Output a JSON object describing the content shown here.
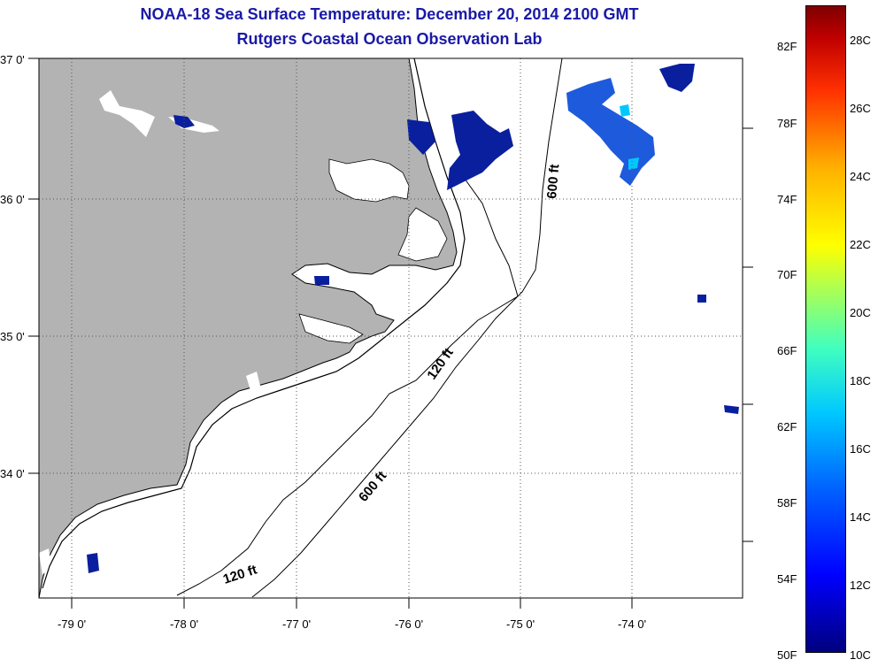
{
  "header": {
    "title": "NOAA-18 Sea Surface Temperature:  December 20, 2014 2100 GMT",
    "subtitle": "Rutgers Coastal Ocean Observation Lab"
  },
  "map": {
    "lat_labels": [
      "37 0'",
      "36 0'",
      "35 0'",
      "34 0'"
    ],
    "lon_labels": [
      "-79 0'",
      "-78 0'",
      "-77 0'",
      "-76 0'",
      "-75 0'",
      "-74 0'"
    ],
    "contour_labels": [
      "600 ft",
      "120 ft",
      "600 ft",
      "120 ft"
    ],
    "colors": {
      "land": "#b3b3b3",
      "ocean": "#ffffff",
      "sst_cold": "#0a1f9e",
      "sst_mid": "#1e5adc"
    }
  },
  "colorbar": {
    "fahrenheit": [
      "82F",
      "78F",
      "74F",
      "70F",
      "66F",
      "62F",
      "58F",
      "54F",
      "50F"
    ],
    "celsius": [
      "28C",
      "26C",
      "24C",
      "22C",
      "20C",
      "18C",
      "16C",
      "14C",
      "12C",
      "10C"
    ]
  }
}
